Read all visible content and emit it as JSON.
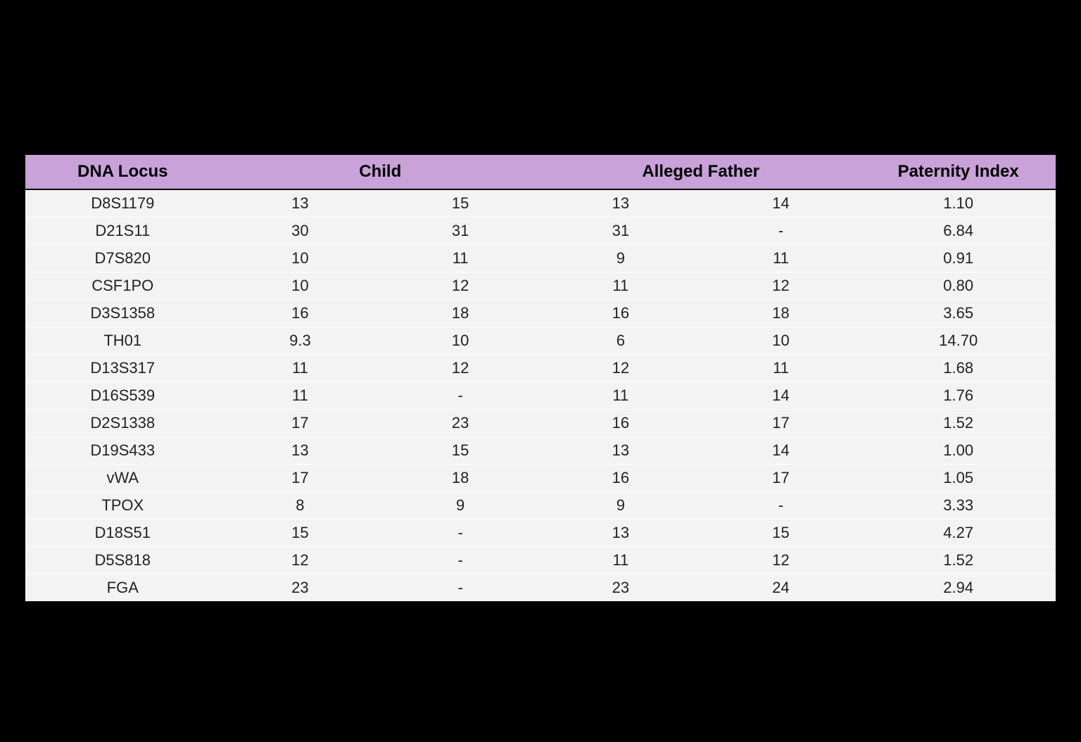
{
  "table": {
    "header_bg": "#c8a2d8",
    "row_bg": "#f3f3f3",
    "page_bg": "#000000",
    "header_fontsize": 24,
    "cell_fontsize": 22,
    "columns": {
      "locus": "DNA Locus",
      "child": "Child",
      "father": "Alleged Father",
      "pi": "Paternity Index"
    },
    "rows": [
      {
        "locus": "D8S1179",
        "child": [
          "13",
          "15"
        ],
        "father": [
          "13",
          "14"
        ],
        "pi": "1.10"
      },
      {
        "locus": "D21S11",
        "child": [
          "30",
          "31"
        ],
        "father": [
          "31",
          "-"
        ],
        "pi": "6.84"
      },
      {
        "locus": "D7S820",
        "child": [
          "10",
          "11"
        ],
        "father": [
          "9",
          "11"
        ],
        "pi": "0.91"
      },
      {
        "locus": "CSF1PO",
        "child": [
          "10",
          "12"
        ],
        "father": [
          "11",
          "12"
        ],
        "pi": "0.80"
      },
      {
        "locus": "D3S1358",
        "child": [
          "16",
          "18"
        ],
        "father": [
          "16",
          "18"
        ],
        "pi": "3.65"
      },
      {
        "locus": "TH01",
        "child": [
          "9.3",
          "10"
        ],
        "father": [
          "6",
          "10"
        ],
        "pi": "14.70"
      },
      {
        "locus": "D13S317",
        "child": [
          "11",
          "12"
        ],
        "father": [
          "12",
          "11"
        ],
        "pi": "1.68"
      },
      {
        "locus": "D16S539",
        "child": [
          "11",
          "-"
        ],
        "father": [
          "11",
          "14"
        ],
        "pi": "1.76"
      },
      {
        "locus": "D2S1338",
        "child": [
          "17",
          "23"
        ],
        "father": [
          "16",
          "17"
        ],
        "pi": "1.52"
      },
      {
        "locus": "D19S433",
        "child": [
          "13",
          "15"
        ],
        "father": [
          "13",
          "14"
        ],
        "pi": "1.00"
      },
      {
        "locus": "vWA",
        "child": [
          "17",
          "18"
        ],
        "father": [
          "16",
          "17"
        ],
        "pi": "1.05"
      },
      {
        "locus": "TPOX",
        "child": [
          "8",
          "9"
        ],
        "father": [
          "9",
          "-"
        ],
        "pi": "3.33"
      },
      {
        "locus": "D18S51",
        "child": [
          "15",
          "-"
        ],
        "father": [
          "13",
          "15"
        ],
        "pi": "4.27"
      },
      {
        "locus": "D5S818",
        "child": [
          "12",
          "-"
        ],
        "father": [
          "11",
          "12"
        ],
        "pi": "1.52"
      },
      {
        "locus": "FGA",
        "child": [
          "23",
          "-"
        ],
        "father": [
          "23",
          "24"
        ],
        "pi": "2.94"
      }
    ]
  }
}
